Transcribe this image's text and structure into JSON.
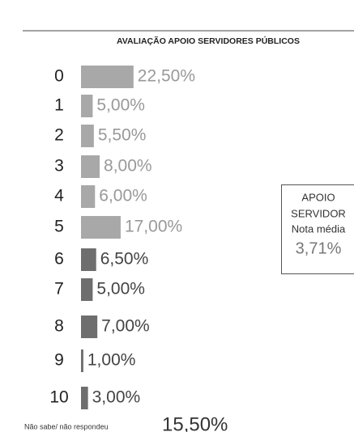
{
  "chart_data": {
    "type": "bar",
    "orientation": "horizontal",
    "title": "AVALIAÇÃO APOIO SERVIDORES PÚBLICOS",
    "categories": [
      "0",
      "1",
      "2",
      "3",
      "4",
      "5",
      "6",
      "7",
      "8",
      "9",
      "10",
      "Não sabe/ não respondeu"
    ],
    "values": [
      22.5,
      5,
      5.5,
      8,
      6,
      17,
      6.5,
      5,
      7,
      1,
      3,
      15.5
    ],
    "value_labels": [
      "22,50%",
      "5,00%",
      "5,50%",
      "8,00%",
      "6,00%",
      "17,00%",
      "6,50%",
      "5,00%",
      "7,00%",
      "1,00%",
      "3,00%",
      "15,50%"
    ],
    "colors": [
      "#a8a8a8",
      "#a8a8a8",
      "#a8a8a8",
      "#a8a8a8",
      "#a8a8a8",
      "#a8a8a8",
      "#6e6e6e",
      "#6e6e6e",
      "#6e6e6e",
      "#6e6e6e",
      "#6e6e6e",
      "#a8a8a8"
    ],
    "annotation": {
      "lines": [
        "APOIO",
        "SERVIDOR",
        "Nota média"
      ],
      "value": "3,71%"
    }
  }
}
